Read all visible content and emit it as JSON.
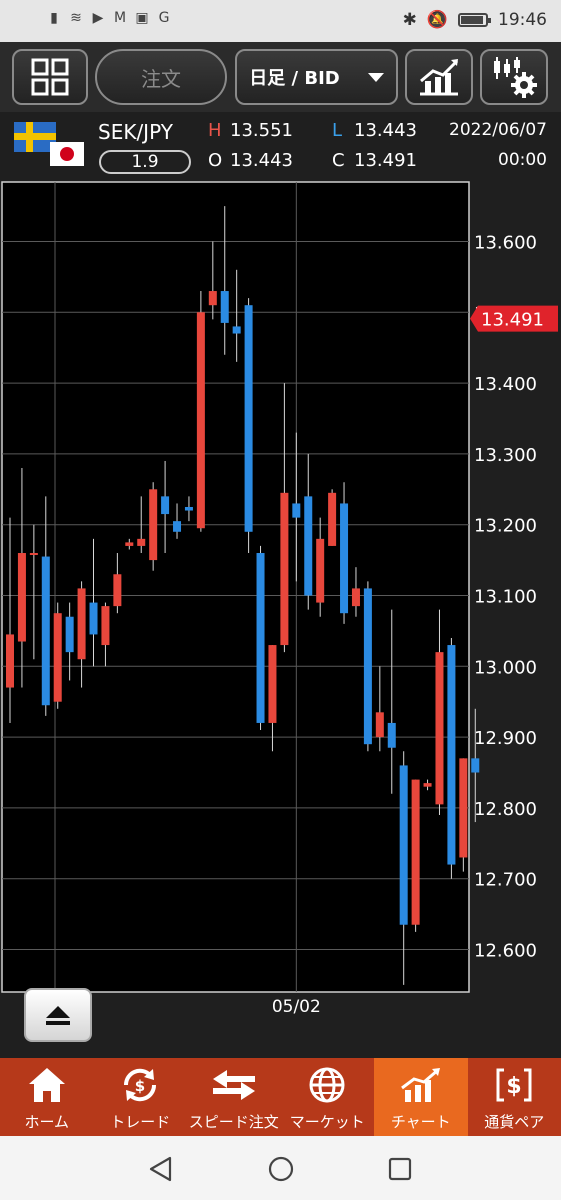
{
  "status_bar": {
    "time": "19:46",
    "left_icons": [
      "signal-icon",
      "wifi-icon",
      "youtube-icon",
      "mail-icon",
      "box-icon",
      "google-icon"
    ],
    "right_icons": [
      "bluetooth-icon",
      "mute-icon",
      "battery-icon"
    ],
    "battery_level": 0.9
  },
  "toolbar": {
    "order_label": "注文",
    "period_label": "日足 / BID"
  },
  "info": {
    "pair": "SEK/JPY",
    "spread": "1.9",
    "high_label": "H",
    "high": "13.551",
    "low_label": "L",
    "low": "13.443",
    "open_label": "O",
    "open": "13.443",
    "close_label": "C",
    "close": "13.491",
    "date": "2022/06/07",
    "time": "00:00"
  },
  "chart_data": {
    "type": "candlestick",
    "ylim": [
      12.54,
      13.684
    ],
    "y_ticks": [
      "13.600",
      "13.500",
      "13.400",
      "13.300",
      "13.200",
      "13.100",
      "13.000",
      "12.900",
      "12.800",
      "12.700",
      "12.600"
    ],
    "x_tick_label": "05/02",
    "x_tick_index": 24,
    "current_price_label": "13.491",
    "grid": true,
    "up_color": "#e8473c",
    "down_color": "#2b8be3",
    "candles": [
      {
        "o": 12.97,
        "h": 13.21,
        "l": 12.92,
        "c": 13.045
      },
      {
        "o": 13.035,
        "h": 13.28,
        "l": 12.97,
        "c": 13.16
      },
      {
        "o": 13.16,
        "h": 13.2,
        "l": 13.01,
        "c": 13.16
      },
      {
        "o": 13.155,
        "h": 13.24,
        "l": 12.93,
        "c": 12.945
      },
      {
        "o": 12.95,
        "h": 13.09,
        "l": 12.94,
        "c": 13.075
      },
      {
        "o": 13.07,
        "h": 13.09,
        "l": 12.98,
        "c": 13.02
      },
      {
        "o": 13.01,
        "h": 13.12,
        "l": 12.97,
        "c": 13.11
      },
      {
        "o": 13.09,
        "h": 13.18,
        "l": 13.0,
        "c": 13.045
      },
      {
        "o": 13.03,
        "h": 13.09,
        "l": 13.0,
        "c": 13.085
      },
      {
        "o": 13.085,
        "h": 13.16,
        "l": 13.075,
        "c": 13.13
      },
      {
        "o": 13.17,
        "h": 13.18,
        "l": 13.165,
        "c": 13.175
      },
      {
        "o": 13.17,
        "h": 13.24,
        "l": 13.16,
        "c": 13.18
      },
      {
        "o": 13.15,
        "h": 13.26,
        "l": 13.135,
        "c": 13.25
      },
      {
        "o": 13.24,
        "h": 13.29,
        "l": 13.16,
        "c": 13.215
      },
      {
        "o": 13.205,
        "h": 13.23,
        "l": 13.18,
        "c": 13.19
      },
      {
        "o": 13.225,
        "h": 13.24,
        "l": 13.205,
        "c": 13.22
      },
      {
        "o": 13.195,
        "h": 13.53,
        "l": 13.19,
        "c": 13.5
      },
      {
        "o": 13.51,
        "h": 13.6,
        "l": 13.49,
        "c": 13.53
      },
      {
        "o": 13.53,
        "h": 13.65,
        "l": 13.44,
        "c": 13.485
      },
      {
        "o": 13.48,
        "h": 13.56,
        "l": 13.43,
        "c": 13.47
      },
      {
        "o": 13.51,
        "h": 13.52,
        "l": 13.16,
        "c": 13.19
      },
      {
        "o": 13.16,
        "h": 13.17,
        "l": 12.91,
        "c": 12.92
      },
      {
        "o": 12.92,
        "h": 13.03,
        "l": 12.88,
        "c": 13.03
      },
      {
        "o": 13.03,
        "h": 13.4,
        "l": 13.02,
        "c": 13.245
      },
      {
        "o": 13.23,
        "h": 13.33,
        "l": 13.12,
        "c": 13.21
      },
      {
        "o": 13.24,
        "h": 13.3,
        "l": 13.08,
        "c": 13.1
      },
      {
        "o": 13.09,
        "h": 13.21,
        "l": 13.07,
        "c": 13.18
      },
      {
        "o": 13.17,
        "h": 13.25,
        "l": 13.17,
        "c": 13.245
      },
      {
        "o": 13.23,
        "h": 13.26,
        "l": 13.06,
        "c": 13.075
      },
      {
        "o": 13.085,
        "h": 13.14,
        "l": 13.07,
        "c": 13.11
      },
      {
        "o": 13.11,
        "h": 13.12,
        "l": 12.88,
        "c": 12.89
      },
      {
        "o": 12.9,
        "h": 13.0,
        "l": 12.88,
        "c": 12.935
      },
      {
        "o": 12.92,
        "h": 13.08,
        "l": 12.82,
        "c": 12.885
      },
      {
        "o": 12.86,
        "h": 12.88,
        "l": 12.55,
        "c": 12.635
      },
      {
        "o": 12.635,
        "h": 12.84,
        "l": 12.625,
        "c": 12.84
      },
      {
        "o": 12.83,
        "h": 12.84,
        "l": 12.825,
        "c": 12.835
      },
      {
        "o": 12.805,
        "h": 13.08,
        "l": 12.79,
        "c": 13.02
      },
      {
        "o": 13.03,
        "h": 13.04,
        "l": 12.7,
        "c": 12.72
      },
      {
        "o": 12.73,
        "h": 12.87,
        "l": 12.71,
        "c": 12.87
      },
      {
        "o": 12.87,
        "h": 12.94,
        "l": 12.78,
        "c": 12.85
      }
    ]
  },
  "eject_button": {
    "icon": "eject-icon"
  },
  "bottom_nav": {
    "items": [
      {
        "label": "ホーム",
        "icon": "home-icon"
      },
      {
        "label": "トレード",
        "icon": "trade-icon"
      },
      {
        "label": "スピード注文",
        "icon": "speed-order-icon"
      },
      {
        "label": "マーケット",
        "icon": "market-globe-icon"
      },
      {
        "label": "チャート",
        "icon": "chart-icon"
      },
      {
        "label": "通貨ペア",
        "icon": "currency-pair-icon"
      }
    ],
    "active_index": 4
  },
  "system_nav": {
    "icons": [
      "back-icon",
      "home-circle-icon",
      "recents-icon"
    ]
  }
}
